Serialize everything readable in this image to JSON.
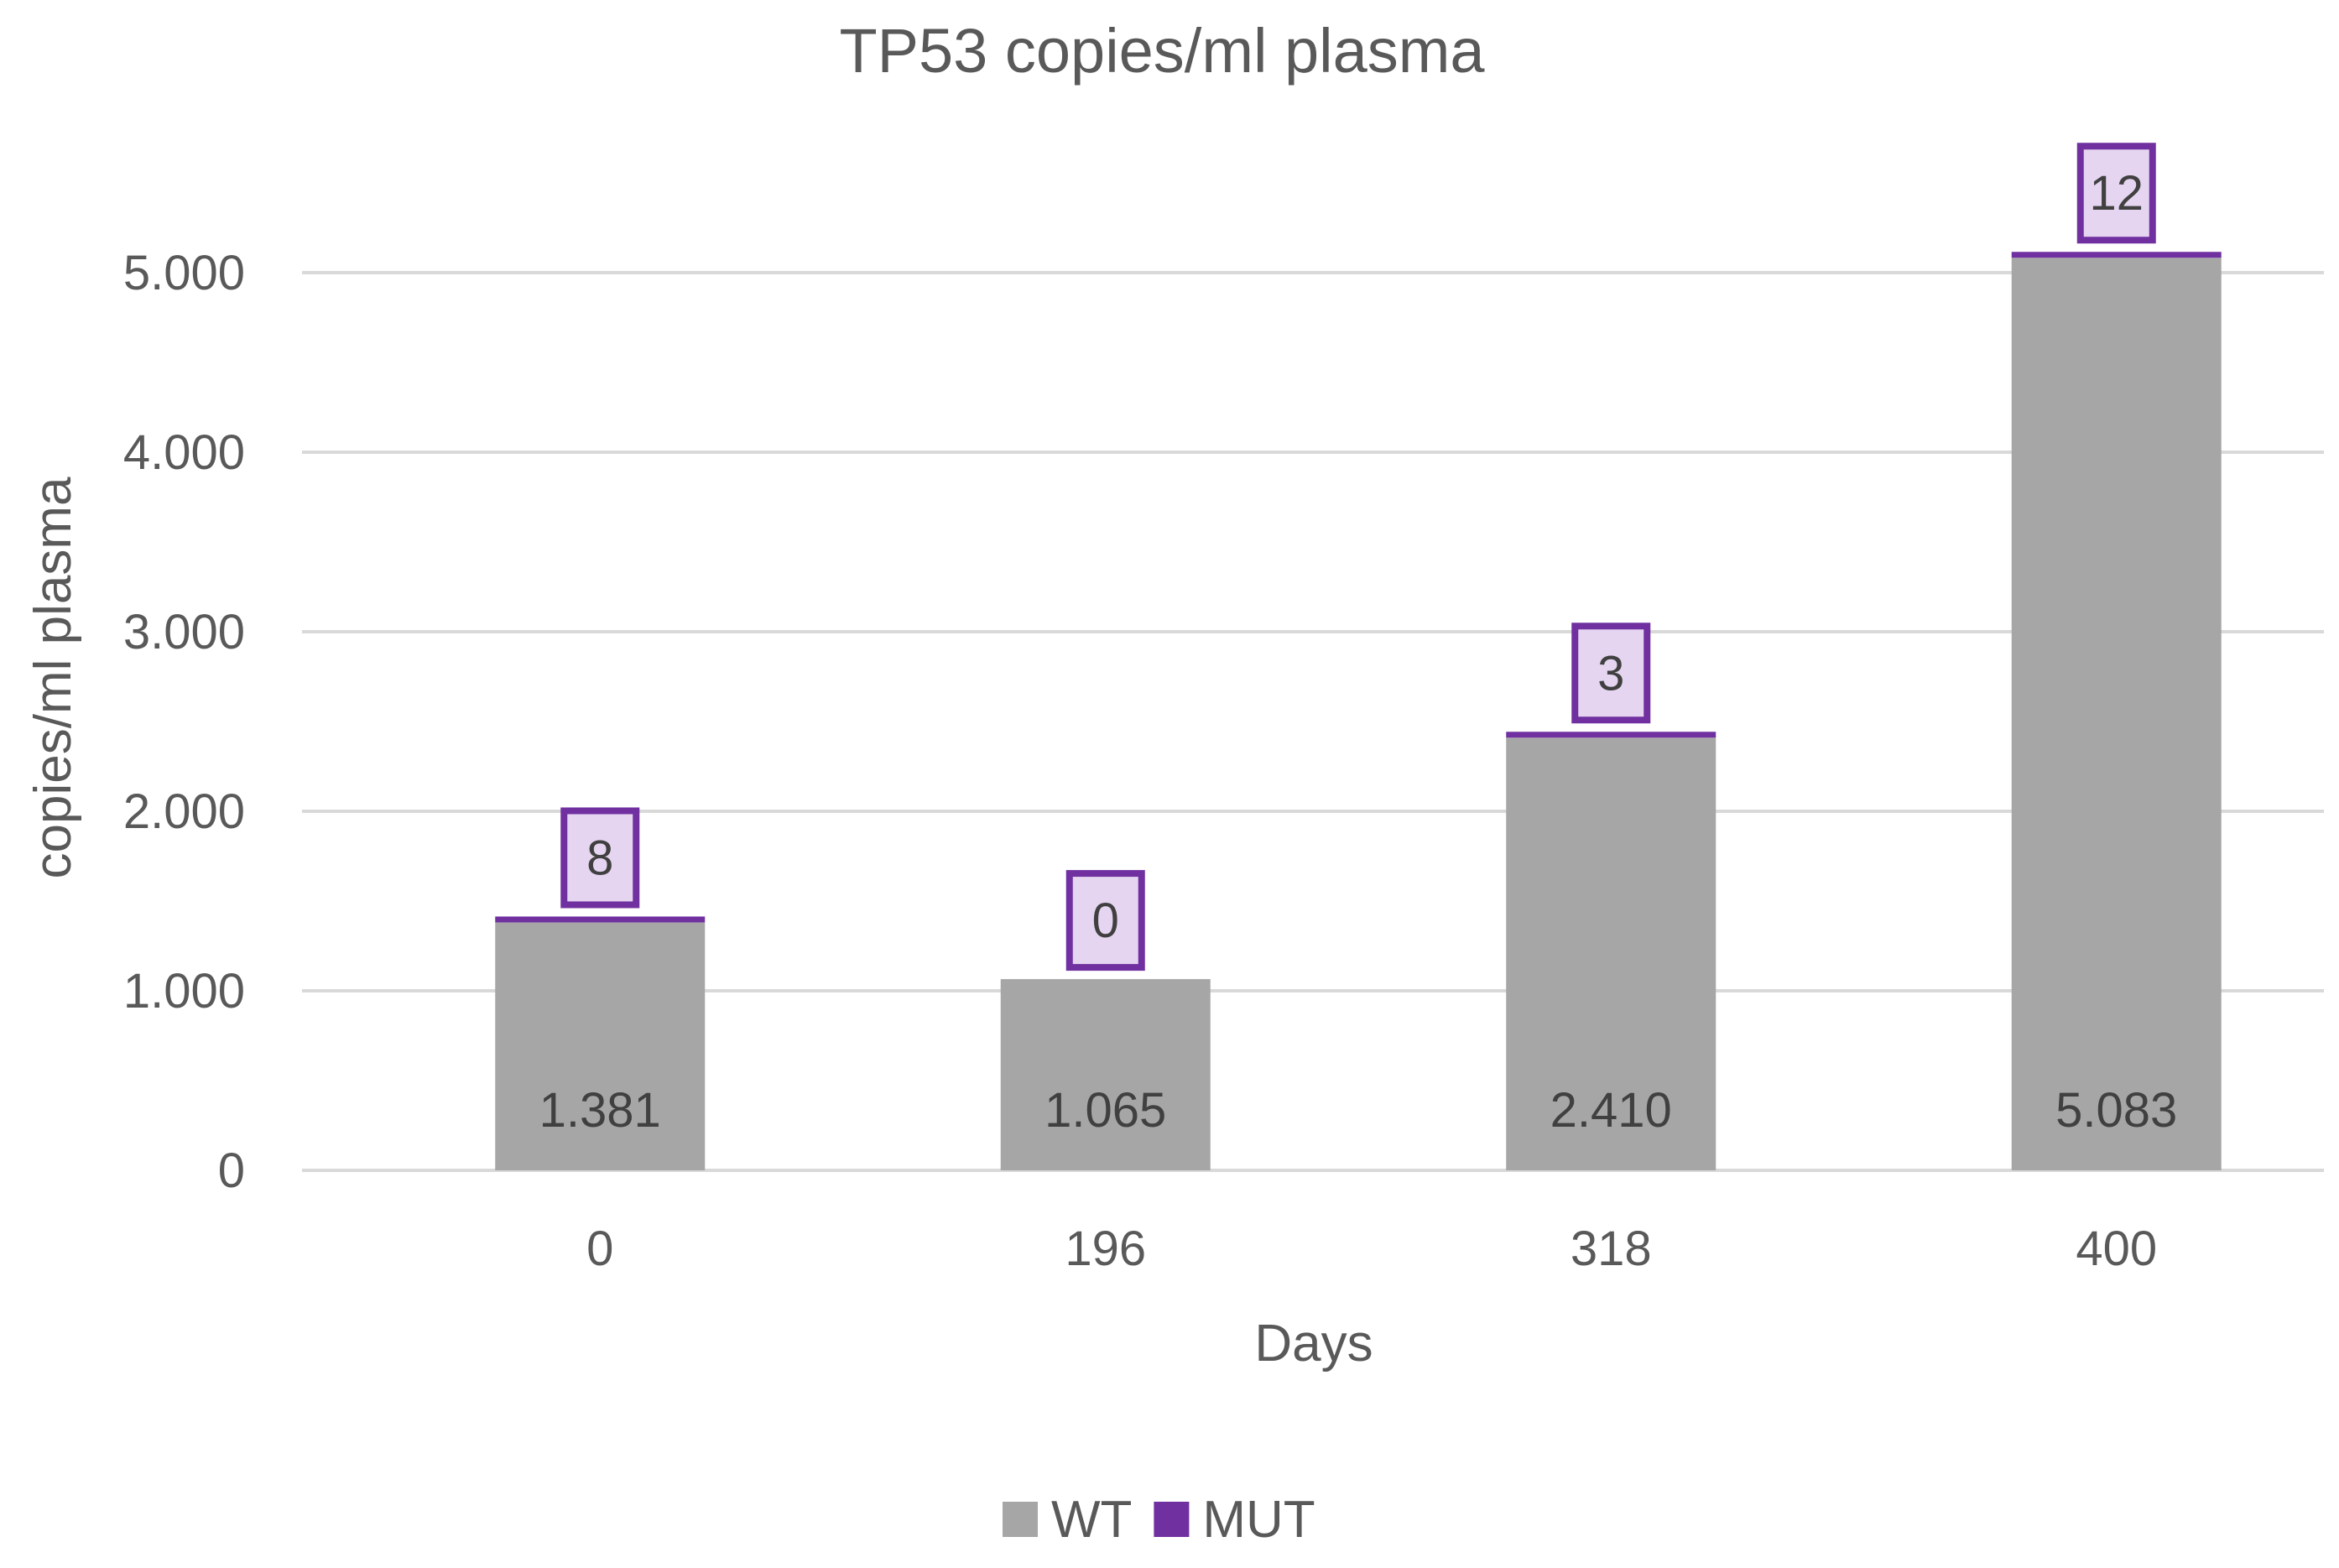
{
  "chart_data": {
    "type": "bar",
    "stacked": true,
    "title": "TP53 copies/ml plasma",
    "xlabel": "Days",
    "ylabel": "copies/ml plasma",
    "categories": [
      "0",
      "196",
      "318",
      "400"
    ],
    "series": [
      {
        "name": "WT",
        "values": [
          1381,
          1065,
          2410,
          5083
        ],
        "labels": [
          "1.381",
          "1.065",
          "2.410",
          "5.083"
        ],
        "color": "#a6a6a6"
      },
      {
        "name": "MUT",
        "values": [
          8,
          0,
          3,
          12
        ],
        "labels": [
          "8",
          "0",
          "3",
          "12"
        ],
        "color": "#7030a0"
      }
    ],
    "ylim": [
      0,
      5400
    ],
    "yticks": [
      0,
      1000,
      2000,
      3000,
      4000,
      5000
    ],
    "ytick_labels": [
      "0",
      "1.000",
      "2.000",
      "3.000",
      "4.000",
      "5.000"
    ],
    "grid": true,
    "legend_position": "bottom",
    "mut_label_box_fill": "#e5d5f0"
  }
}
